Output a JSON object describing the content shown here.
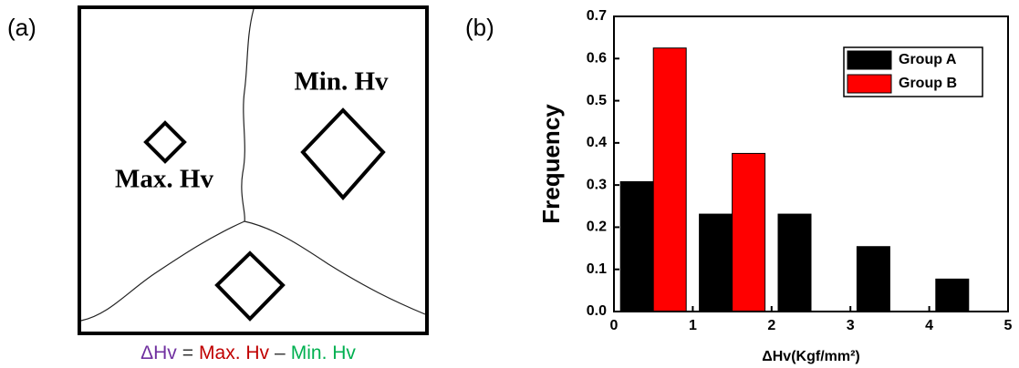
{
  "panel_a": {
    "label": "(a)",
    "min_label": "Min. Hv",
    "max_label": "Max. Hv",
    "caption": [
      {
        "text": "ΔHv",
        "color": "#7030a0"
      },
      {
        "text": "=",
        "color": "#333333"
      },
      {
        "text": "Max. Hv",
        "color": "#c00000"
      },
      {
        "text": "–",
        "color": "#333333"
      },
      {
        "text": "Min. Hv",
        "color": "#00b050"
      }
    ]
  },
  "chart_data": {
    "type": "bar",
    "panel_label": "(b)",
    "xlabel": "ΔHv(Kgf/mm²)",
    "ylabel": "Frequency",
    "x": [
      0.5,
      1.5,
      2.5,
      3.5,
      4.5
    ],
    "series": [
      {
        "name": "Group A",
        "color": "#000000",
        "values": [
          0.308,
          0.231,
          0.231,
          0.154,
          0.077
        ]
      },
      {
        "name": "Group B",
        "color": "#ff0000",
        "values": [
          0.625,
          0.375,
          0,
          0,
          0
        ]
      }
    ],
    "xlim": [
      0,
      5
    ],
    "xticks": [
      0,
      1,
      2,
      3,
      4,
      5
    ],
    "ylim": [
      0,
      0.7
    ],
    "yticks": [
      {
        "value": 0,
        "label": "0.0"
      },
      0.1,
      0.2,
      0.3,
      0.4,
      0.5,
      0.6,
      0.7
    ],
    "legend": "upper right"
  }
}
